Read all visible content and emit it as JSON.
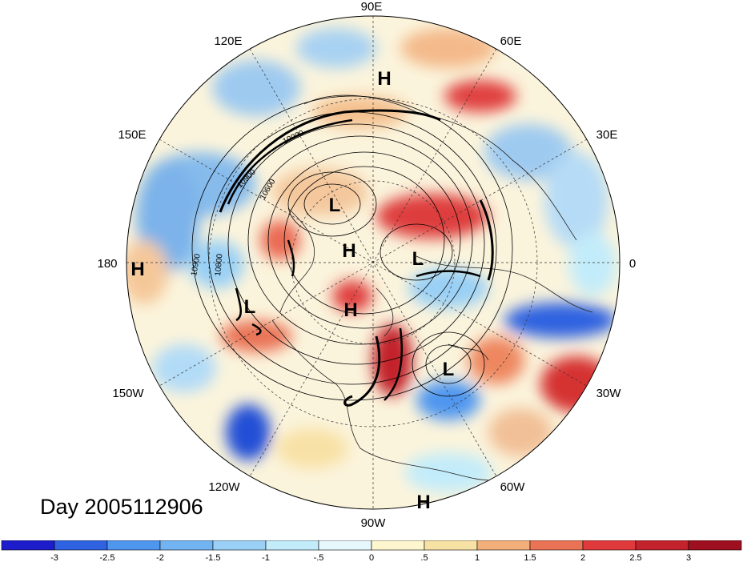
{
  "map": {
    "projection": "polar-stereographic-north",
    "longitude_labels": [
      "90E",
      "120E",
      "60E",
      "150E",
      "30E",
      "180",
      "0",
      "150W",
      "30W",
      "120W",
      "60W",
      "90W"
    ],
    "pressure_systems": [
      {
        "label": "H",
        "region": "northern Siberia"
      },
      {
        "label": "H",
        "region": "dateline west"
      },
      {
        "label": "L",
        "region": "East Siberian Sea"
      },
      {
        "label": "H",
        "region": "near pole"
      },
      {
        "label": "L",
        "region": "Barents Sea"
      },
      {
        "label": "L",
        "region": "Alaska"
      },
      {
        "label": "H",
        "region": "Canadian Archipelago"
      },
      {
        "label": "L",
        "region": "North Atlantic"
      },
      {
        "label": "H",
        "region": "South America edge"
      }
    ],
    "contour_labels": [
      "10900",
      "10900",
      "10900",
      "10800",
      "10600"
    ],
    "colors": {
      "background": "#ffffff",
      "contour": "#000000"
    }
  },
  "title": {
    "day_label": "Day 2005112906"
  },
  "colorbar": {
    "tick_labels": [
      "-3",
      "-2.5",
      "-2",
      "-1.5",
      "-1",
      "-.5",
      "0",
      ".5",
      "1",
      "1.5",
      "2",
      "2.5",
      "3"
    ],
    "colors": [
      "#1d1dcb",
      "#2f62e0",
      "#4f96ef",
      "#72b3f2",
      "#9ad0f5",
      "#c3ecfa",
      "#e6f8fc",
      "#fdf6cf",
      "#f8e1a5",
      "#f2af79",
      "#ea7356",
      "#e03a3c",
      "#c3232c",
      "#9e0f20"
    ]
  }
}
